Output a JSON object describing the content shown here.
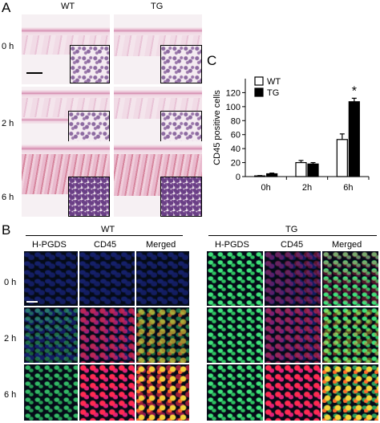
{
  "panel_a": {
    "letter": "A",
    "columns": [
      "WT",
      "TG"
    ],
    "rows": [
      "0 h",
      "2 h",
      "6 h"
    ]
  },
  "panel_b": {
    "letter": "B",
    "groups": [
      {
        "label": "WT",
        "channels": [
          "H-PGDS",
          "CD45",
          "Merged"
        ]
      },
      {
        "label": "TG",
        "channels": [
          "H-PGDS",
          "CD45",
          "Merged"
        ]
      }
    ],
    "rows": [
      "0 h",
      "2 h",
      "6 h"
    ]
  },
  "panel_c": {
    "letter": "C"
  },
  "chart_data": {
    "type": "bar",
    "categories": [
      "0h",
      "2h",
      "6h"
    ],
    "series": [
      {
        "name": "WT",
        "values": [
          1,
          20,
          53
        ],
        "errors": [
          0.5,
          3,
          8
        ],
        "fill": "#ffffff"
      },
      {
        "name": "TG",
        "values": [
          4,
          18,
          107
        ],
        "errors": [
          1,
          2,
          5
        ],
        "fill": "#000000"
      }
    ],
    "title": "",
    "xlabel": "",
    "ylabel": "CD45 positive cells",
    "ylim": [
      0,
      140
    ],
    "yticks": [
      0,
      20,
      40,
      60,
      80,
      100,
      120
    ],
    "annotations": [
      {
        "category": "6h",
        "series": "TG",
        "text": "*"
      }
    ],
    "legend": "top-left",
    "grid": false
  }
}
